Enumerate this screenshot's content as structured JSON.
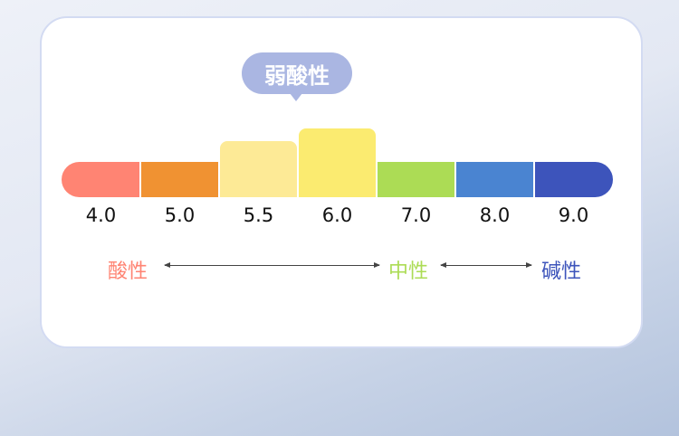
{
  "callout": {
    "label": "弱酸性",
    "color": "#aab6e2"
  },
  "scale": [
    {
      "value": "4.0",
      "color": "#ff8473",
      "level": 1
    },
    {
      "value": "5.0",
      "color": "#f09232",
      "level": 1
    },
    {
      "value": "5.5",
      "color": "#fdea96",
      "level": 2
    },
    {
      "value": "6.0",
      "color": "#fbeb70",
      "level": 3
    },
    {
      "value": "7.0",
      "color": "#acdc55",
      "level": 1
    },
    {
      "value": "8.0",
      "color": "#4a84d1",
      "level": 1
    },
    {
      "value": "9.0",
      "color": "#3d54bb",
      "level": 1
    }
  ],
  "categories": [
    {
      "label": "酸性",
      "color": "#ff8473"
    },
    {
      "label": "中性",
      "color": "#acdc55"
    },
    {
      "label": "碱性",
      "color": "#3d54bb"
    }
  ]
}
